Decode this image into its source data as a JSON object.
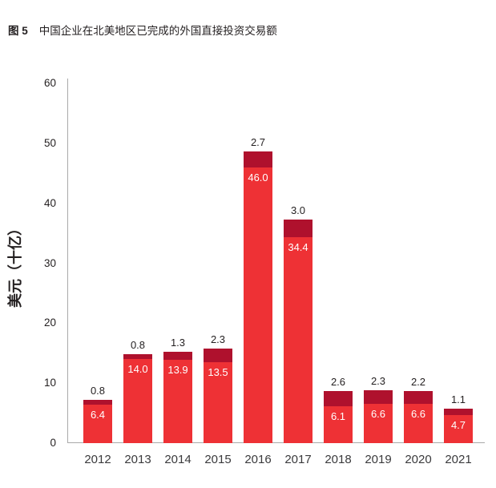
{
  "figure": {
    "label": "图 5",
    "title": "中国企业在北美地区已完成的外国直接投资交易额"
  },
  "chart_data": {
    "type": "bar",
    "stacked": true,
    "title": "中国企业在北美地区已完成的外国直接投资交易额",
    "xlabel": "",
    "ylabel": "美元（十亿）",
    "ylim": [
      0,
      60
    ],
    "yticks": [
      "0",
      "10",
      "20",
      "30",
      "40",
      "50",
      "60"
    ],
    "grid": false,
    "legend_position": "none",
    "categories": [
      "2012",
      "2013",
      "2014",
      "2015",
      "2016",
      "2017",
      "2018",
      "2019",
      "2020",
      "2021"
    ],
    "series": [
      {
        "name": "bottom-segment",
        "color": "#ee3135",
        "label_color": "#ffffff",
        "values": [
          6.4,
          14.0,
          13.9,
          13.5,
          46.0,
          34.4,
          6.1,
          6.6,
          6.6,
          4.7
        ],
        "labels": [
          "6.4",
          "14.0",
          "13.9",
          "13.5",
          "46.0",
          "34.4",
          "6.1",
          "6.6",
          "6.6",
          "4.7"
        ]
      },
      {
        "name": "top-segment",
        "color": "#af112d",
        "label_color": "#231f20",
        "values": [
          0.8,
          0.8,
          1.3,
          2.3,
          2.7,
          3.0,
          2.6,
          2.3,
          2.2,
          1.1
        ],
        "labels": [
          "0.8",
          "0.8",
          "1.3",
          "2.3",
          "2.7",
          "3.0",
          "2.6",
          "2.3",
          "2.2",
          "1.1"
        ]
      }
    ]
  },
  "colors": {
    "bar_bright_red": "#ee3135",
    "bar_dark_red": "#af112d",
    "axis_line": "#a9a9a9",
    "text_dark": "#231f20",
    "in_bar_label": "#ffffff",
    "background": "#ffffff"
  }
}
